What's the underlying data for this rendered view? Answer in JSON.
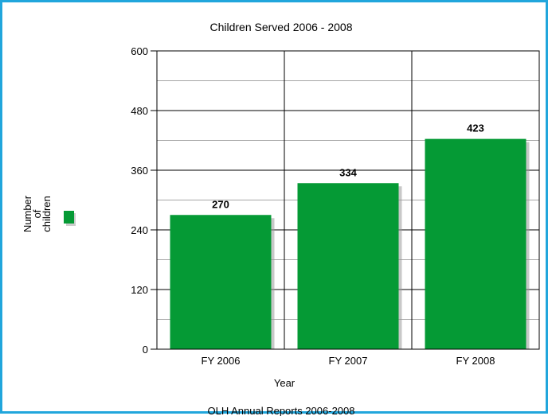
{
  "chart_data": {
    "type": "bar",
    "title": "Children Served 2006 - 2008",
    "categories": [
      "FY 2006",
      "FY 2007",
      "FY 2008"
    ],
    "series": [
      {
        "name": "Number of children",
        "values": [
          270,
          334,
          423
        ]
      }
    ],
    "xlabel": "Year",
    "ylabel": "",
    "ylim": [
      0,
      600
    ],
    "yticks": [
      "0",
      "120",
      "240",
      "360",
      "480",
      "600"
    ],
    "value_labels": [
      "270",
      "334",
      "423"
    ],
    "legend_lines": [
      "Number",
      "of",
      "children"
    ],
    "legend_position": "left",
    "footer": "OLH Annual Reports 2006-2008",
    "grid": true,
    "colors": {
      "bar": "#059a35",
      "frame": "#21a6dc",
      "grid": "#000000"
    }
  }
}
